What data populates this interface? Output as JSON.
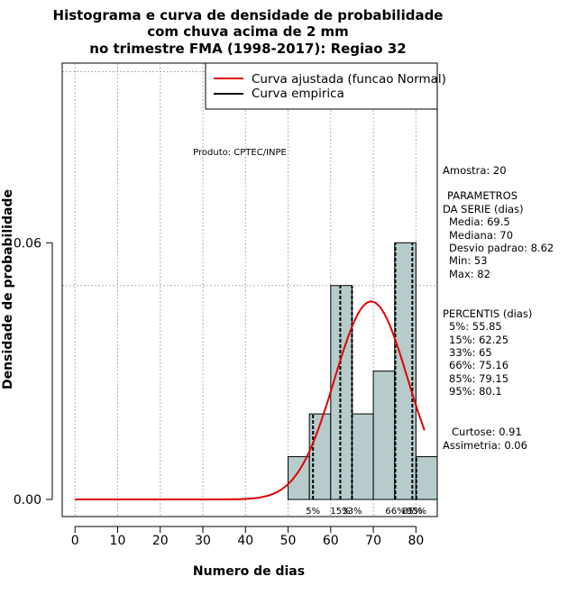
{
  "chart_data": {
    "type": "bar",
    "title_lines": [
      "Histograma e curva de densidade de probabilidade",
      "com chuva acima de 2 mm",
      "no trimestre FMA (1998-2017): Regiao 32"
    ],
    "xlabel": "Numero de dias",
    "ylabel": "Densidade de probabilidade",
    "xlim": [
      -3,
      85
    ],
    "ylim": [
      -0.004,
      0.102
    ],
    "x_ticks": [
      0,
      10,
      20,
      30,
      40,
      50,
      60,
      70,
      80
    ],
    "y_ticks": [
      0.0,
      0.06
    ],
    "y_tick_labels": [
      "0.00",
      "0.06"
    ],
    "grid_x": [
      0,
      10,
      20,
      30,
      40,
      50,
      60,
      70,
      80
    ],
    "grid_y": [
      0.05,
      0.1
    ],
    "histogram": {
      "bin_starts": [
        50,
        55,
        60,
        65,
        70,
        75,
        80
      ],
      "bin_width": 5,
      "densities": [
        0.01,
        0.02,
        0.05,
        0.02,
        0.03,
        0.06,
        0.01
      ]
    },
    "normal_curve": {
      "mean": 69.5,
      "sd": 8.62,
      "x_range": [
        0,
        82
      ],
      "color": "#e00000"
    },
    "percentiles": [
      {
        "label": "5%",
        "value": 55.85
      },
      {
        "label": "15%",
        "value": 62.25
      },
      {
        "label": "33%",
        "value": 65
      },
      {
        "label": "66%",
        "value": 75.16
      },
      {
        "label": "85%",
        "value": 79.15
      },
      {
        "label": "95%",
        "value": 80.1
      }
    ],
    "legend": {
      "position": "top-right",
      "entries": [
        {
          "label": "Curva ajustada (funcao Normal)",
          "color": "#e00000"
        },
        {
          "label": "Curva empirica",
          "color": "#000000"
        }
      ]
    },
    "annotation": "Produto: CPTEC/INPE"
  },
  "stats": {
    "sample": "Amostra: 20",
    "params_header_1": "PARAMETROS",
    "params_header_2": "DA SERIE (dias)",
    "media": "Media: 69.5",
    "mediana": "Mediana: 70",
    "desvio": "Desvio padrao: 8.62",
    "min": "Min: 53",
    "max": "Max: 82",
    "perc_header": "PERCENTIS (dias)",
    "p5": "5%: 55.85",
    "p15": "15%: 62.25",
    "p33": "33%: 65",
    "p66": "66%: 75.16",
    "p85": "85%: 79.15",
    "p95": "95%: 80.1",
    "curtose": "Curtose: 0.91",
    "assimetria": "Assimetria: 0.06"
  }
}
